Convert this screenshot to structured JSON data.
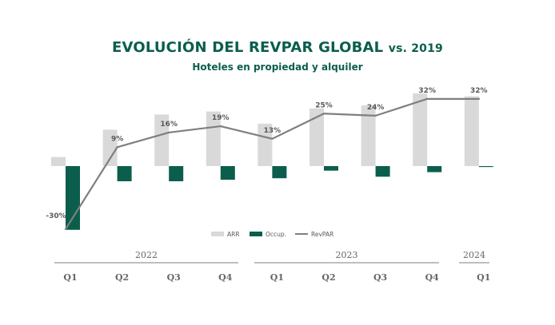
{
  "title_main": "EVOLUCIÓN DEL REVPAR GLOBAL",
  "title_suffix": "vs. 2019",
  "subtitle": "Hoteles en propiedad y alquiler",
  "colors": {
    "arr": "#d9d9d9",
    "occ": "#0b5e4c",
    "revpar": "#7f7f7f",
    "label": "#595959",
    "year_line": "#7f7f7f",
    "quarter_text": "#666666"
  },
  "chart_data": {
    "type": "bar",
    "categories": [
      "Q1",
      "Q2",
      "Q3",
      "Q4",
      "Q1",
      "Q2",
      "Q3",
      "Q4",
      "Q1"
    ],
    "years": [
      {
        "label": "2022",
        "span": [
          0,
          3
        ]
      },
      {
        "label": "2023",
        "span": [
          4,
          7
        ]
      },
      {
        "label": "2024",
        "span": [
          8,
          8
        ]
      }
    ],
    "series": [
      {
        "name": "ARR",
        "kind": "bar",
        "values": [
          3,
          12,
          17,
          18,
          14,
          19,
          20,
          24,
          23
        ]
      },
      {
        "name": "Occup.",
        "kind": "bar",
        "values": [
          -21,
          -5,
          -5,
          -4.5,
          -4,
          -1.5,
          -3.5,
          -2,
          -0.3
        ]
      },
      {
        "name": "RevPAR",
        "kind": "line",
        "values": [
          -30,
          9,
          16,
          19,
          13,
          25,
          24,
          32,
          32
        ]
      }
    ],
    "data_labels": [
      "-30%",
      "9%",
      "16%",
      "19%",
      "13%",
      "25%",
      "24%",
      "32%",
      "32%"
    ],
    "legend": [
      "ARR",
      "Occup.",
      "RevPAR"
    ]
  }
}
